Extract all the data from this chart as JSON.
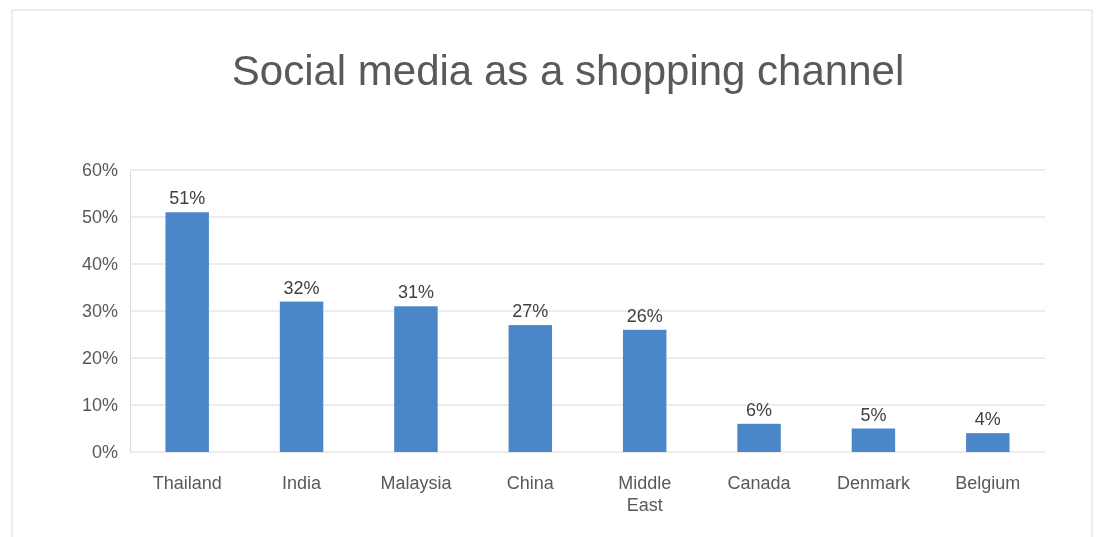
{
  "chart_data": {
    "type": "bar",
    "title": "Social media as a shopping channel",
    "categories": [
      "Thailand",
      "India",
      "Malaysia",
      "China",
      "Middle East",
      "Canada",
      "Denmark",
      "Belgium"
    ],
    "values": [
      51,
      32,
      31,
      27,
      26,
      6,
      5,
      4
    ],
    "value_labels": [
      "51%",
      "32%",
      "31%",
      "27%",
      "26%",
      "6%",
      "5%",
      "4%"
    ],
    "color": "#4a86c8",
    "ylim": [
      0,
      60
    ],
    "yticks": [
      {
        "value": 0,
        "label": "0%"
      },
      {
        "value": 10,
        "label": "10%"
      },
      {
        "value": 20,
        "label": "20%"
      },
      {
        "value": 30,
        "label": "30%"
      },
      {
        "value": 40,
        "label": "40%"
      },
      {
        "value": 50,
        "label": "50%"
      },
      {
        "value": 60,
        "label": "60%"
      }
    ],
    "grid": true
  }
}
